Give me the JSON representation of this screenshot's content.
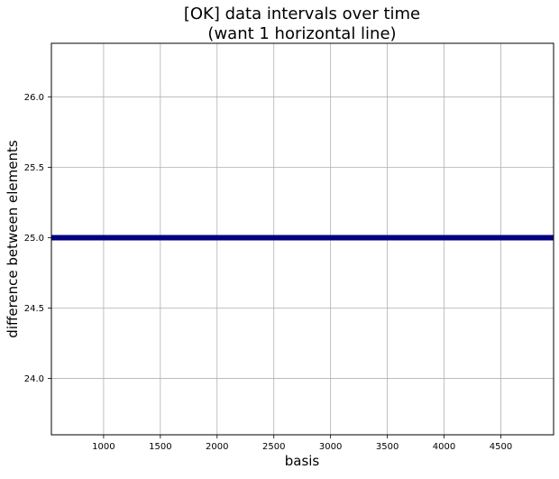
{
  "chart_data": {
    "type": "line",
    "title_lines": [
      "[OK] data intervals over time",
      "(want 1 horizontal line)"
    ],
    "xlabel": "basis",
    "ylabel": "difference between elements",
    "xlim": [
      540,
      4965
    ],
    "ylim": [
      23.6,
      26.38
    ],
    "xticks": [
      1000,
      1500,
      2000,
      2500,
      3000,
      3500,
      4000,
      4500
    ],
    "yticks": [
      24.0,
      24.5,
      25.0,
      25.5,
      26.0
    ],
    "grid": true,
    "series": [
      {
        "color": "#000080",
        "x": [
          540,
          4965
        ],
        "y": [
          25.0,
          25.0
        ]
      }
    ]
  }
}
